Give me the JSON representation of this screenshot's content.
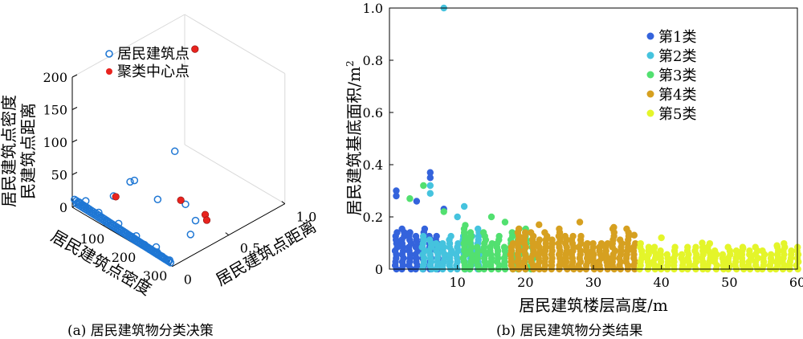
{
  "captions": {
    "a": "(a) 居民建筑物分类决策",
    "b": "(b) 居民建筑物分类结果"
  },
  "chart_data": [
    {
      "type": "scatter",
      "panel": "a",
      "projection": "3d",
      "xlabel": "居民建筑点密度",
      "ylabel": "居民建筑点距离",
      "zlabel": "居民建筑点密度×居民建筑点距离",
      "zlabel_lines": [
        "居民建筑点密度",
        "民建筑点距离"
      ],
      "x_ticks": [
        "100",
        "200",
        "300"
      ],
      "y_ticks": [
        "0",
        "0.5",
        "1.0"
      ],
      "z_ticks": [
        "0",
        "50",
        "100",
        "150",
        "200"
      ],
      "xlim": [
        0,
        320
      ],
      "ylim": [
        0,
        1.0
      ],
      "zlim": [
        0,
        200
      ],
      "legend": {
        "placement": "top-left",
        "entries": [
          {
            "label": "居民建筑点",
            "marker": "open-circle",
            "color": "#1f77d4"
          },
          {
            "label": "聚类中心点",
            "marker": "filled-circle",
            "color": "#e8231e"
          }
        ]
      },
      "series": [
        {
          "name": "居民建筑点",
          "color": "#1f77d4",
          "note_points": "dense band of points near zero distance",
          "points": [
            [
              15,
              0.02,
              10
            ],
            [
              40,
              0.03,
              6
            ],
            [
              60,
              0.02,
              5
            ],
            [
              80,
              0.03,
              5
            ],
            [
              100,
              0.03,
              4
            ],
            [
              120,
              0.02,
              4
            ],
            [
              140,
              0.03,
              3
            ],
            [
              160,
              0.02,
              3
            ],
            [
              180,
              0.03,
              3
            ],
            [
              200,
              0.02,
              2
            ],
            [
              220,
              0.03,
              2
            ],
            [
              240,
              0.02,
              2
            ],
            [
              260,
              0.03,
              2
            ],
            [
              280,
              0.02,
              2
            ],
            [
              300,
              0.03,
              1
            ],
            [
              25,
              0.05,
              12
            ],
            [
              70,
              0.04,
              8
            ],
            [
              130,
              0.05,
              7
            ],
            [
              190,
              0.04,
              6
            ],
            [
              250,
              0.05,
              5
            ],
            [
              165,
              0.3,
              30
            ],
            [
              95,
              0.25,
              42
            ],
            [
              105,
              0.26,
              46
            ],
            [
              130,
              0.55,
              70
            ],
            [
              60,
              0.2,
              15
            ],
            [
              200,
              0.45,
              18
            ],
            [
              250,
              0.4,
              12
            ],
            [
              270,
              0.3,
              6
            ]
          ]
        },
        {
          "name": "聚类中心点",
          "color": "#e8231e",
          "points": [
            [
              40,
              0.98,
              160
            ],
            [
              60,
              0.22,
              12
            ],
            [
              185,
              0.45,
              20
            ],
            [
              245,
              0.5,
              10
            ],
            [
              250,
              0.5,
              3
            ]
          ]
        }
      ]
    },
    {
      "type": "scatter",
      "panel": "b",
      "xlabel": "居民建筑楼层高度/m",
      "ylabel": "居民建筑基底面积/m",
      "ylabel_superscript": "2",
      "xlim": [
        0,
        60
      ],
      "ylim": [
        0,
        1.0
      ],
      "x_ticks": [
        10,
        20,
        30,
        40,
        50,
        60
      ],
      "y_ticks": [
        0,
        0.2,
        0.4,
        0.6,
        0.8,
        1.0
      ],
      "y_tick_labels": [
        "0",
        "0.2",
        "0.4",
        "0.6",
        "0.8",
        "1.0"
      ],
      "legend": {
        "placement": "top-right",
        "entries": [
          {
            "label": "第1类",
            "color": "#3463dc"
          },
          {
            "label": "第2类",
            "color": "#45c3de"
          },
          {
            "label": "第3类",
            "color": "#52e070"
          },
          {
            "label": "第4类",
            "color": "#d6a020"
          },
          {
            "label": "第5类",
            "color": "#e4f52a"
          }
        ]
      },
      "series": [
        {
          "name": "第1类",
          "color": "#3463dc",
          "x_range": [
            1,
            7
          ],
          "y_max": 0.19,
          "outliers": [
            [
              1,
              0.3
            ],
            [
              1,
              0.28
            ],
            [
              4,
              0.26
            ],
            [
              6,
              0.37
            ],
            [
              6,
              0.35
            ],
            [
              8,
              0.23
            ]
          ]
        },
        {
          "name": "第2类",
          "color": "#45c3de",
          "x_range": [
            5,
            13
          ],
          "y_max": 0.19,
          "outliers": [
            [
              8,
              1.0
            ],
            [
              6,
              0.32
            ],
            [
              6,
              0.29
            ],
            [
              11,
              0.24
            ],
            [
              10,
              0.2
            ]
          ]
        },
        {
          "name": "第3类",
          "color": "#52e070",
          "x_range": [
            11,
            21
          ],
          "y_max": 0.17,
          "outliers": [
            [
              3,
              0.27
            ],
            [
              5,
              0.32
            ],
            [
              8,
              0.22
            ],
            [
              15,
              0.2
            ],
            [
              17,
              0.18
            ]
          ]
        },
        {
          "name": "第4类",
          "color": "#d6a020",
          "x_range": [
            18,
            36
          ],
          "y_max": 0.17,
          "outliers": [
            [
              22,
              0.17
            ],
            [
              28,
              0.18
            ],
            [
              33,
              0.16
            ],
            [
              36,
              0.13
            ]
          ]
        },
        {
          "name": "第5类",
          "color": "#e4f52a",
          "x_range": [
            37,
            60
          ],
          "y_max": 0.11,
          "outliers": [
            [
              40,
              0.12
            ],
            [
              46,
              0.1
            ],
            [
              52,
              0.08
            ],
            [
              57,
              0.09
            ]
          ]
        }
      ]
    }
  ]
}
